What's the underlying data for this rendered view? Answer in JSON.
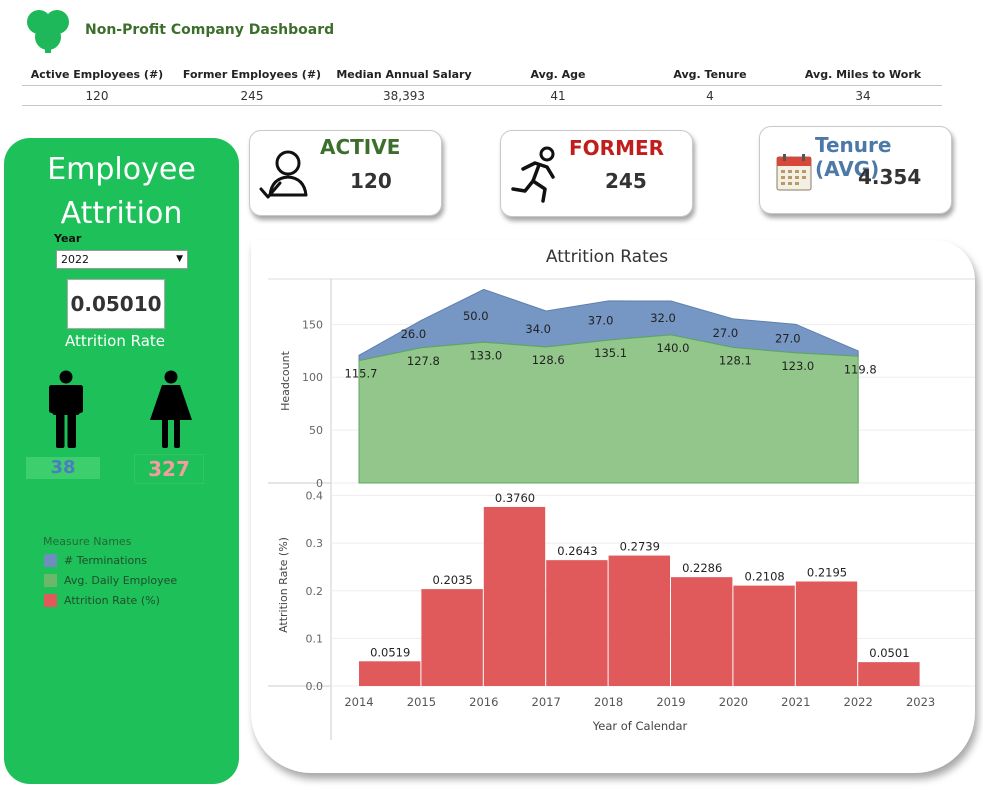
{
  "header": {
    "title": "Non-Profit Company Dashboard",
    "logo_icon": "trefoil-logo-icon"
  },
  "kpis": [
    {
      "label": "Active Employees (#)",
      "value": "120"
    },
    {
      "label": "Former Employees (#)",
      "value": "245"
    },
    {
      "label": "Median Annual Salary",
      "value": "38,393"
    },
    {
      "label": "Avg. Age",
      "value": "41"
    },
    {
      "label": "Avg. Tenure",
      "value": "4"
    },
    {
      "label": "Avg. Miles to Work",
      "value": "34"
    }
  ],
  "panel": {
    "title_line1": "Employee",
    "title_line2": "Attrition",
    "year_label": "Year",
    "year_selected": "2022",
    "attrition_rate_value": "0.05010",
    "attrition_rate_label": "Attrition Rate",
    "male_count": "38",
    "female_count": "327",
    "legend_title": "Measure Names",
    "legend": [
      {
        "label": "# Terminations",
        "color": "#6e8fbd"
      },
      {
        "label": "Avg. Daily Employee",
        "color": "#6bb86b"
      },
      {
        "label": "Attrition Rate (%)",
        "color": "#e05a5c"
      }
    ]
  },
  "cards": {
    "active": {
      "label": "ACTIVE",
      "value": "120",
      "color": "#3d6f2c",
      "icon": "user-check-icon"
    },
    "former": {
      "label": "FORMER",
      "value": "245",
      "color": "#c21d1d",
      "icon": "running-man-icon"
    },
    "tenure": {
      "label": "Tenure (AVG)",
      "value": "4.354",
      "color": "#4d79a8",
      "icon": "calendar-icon"
    }
  },
  "colors": {
    "terminations": "#7696c3",
    "headcount": "#92c68a",
    "attrition": "#e05a5c",
    "panel": "#1ec05a"
  },
  "chart_data": [
    {
      "type": "area",
      "title": "Attrition Rates",
      "ylabel": "Headcount",
      "ylim": [
        0,
        190
      ],
      "yticks": [
        0,
        50,
        100,
        150
      ],
      "x": [
        "2014",
        "2015",
        "2016",
        "2017",
        "2018",
        "2019",
        "2020",
        "2021",
        "2022"
      ],
      "stacked": true,
      "series": [
        {
          "name": "Avg. Daily Employee",
          "values": [
            115.7,
            127.8,
            133.0,
            128.6,
            135.1,
            140.0,
            128.1,
            123.0,
            119.8
          ],
          "labels": [
            "115.7",
            "127.8",
            "133.0",
            "128.6",
            "135.1",
            "140.0",
            "128.1",
            "123.0",
            "119.8"
          ]
        },
        {
          "name": "# Terminations",
          "values": [
            null,
            26.0,
            50.0,
            34.0,
            37.0,
            32.0,
            27.0,
            27.0,
            null
          ],
          "labels": [
            "",
            "26.0",
            "50.0",
            "34.0",
            "37.0",
            "32.0",
            "27.0",
            "27.0",
            ""
          ]
        }
      ]
    },
    {
      "type": "bar",
      "ylabel": "Attrition Rate (%)",
      "xlabel": "Year of Calendar",
      "ylim": [
        0,
        0.42
      ],
      "yticks": [
        "0.0",
        "0.1",
        "0.2",
        "0.3",
        "0.4"
      ],
      "x_ticks": [
        "2014",
        "2015",
        "2016",
        "2017",
        "2018",
        "2019",
        "2020",
        "2021",
        "2022",
        "2023"
      ],
      "categories": [
        "2014",
        "2015",
        "2016",
        "2017",
        "2018",
        "2019",
        "2020",
        "2021",
        "2022"
      ],
      "values": [
        0.0519,
        0.2035,
        0.376,
        0.2643,
        0.2739,
        0.2286,
        0.2108,
        0.2195,
        0.0501
      ],
      "labels": [
        "0.0519",
        "0.2035",
        "0.3760",
        "0.2643",
        "0.2739",
        "0.2286",
        "0.2108",
        "0.2195",
        "0.0501"
      ]
    }
  ]
}
